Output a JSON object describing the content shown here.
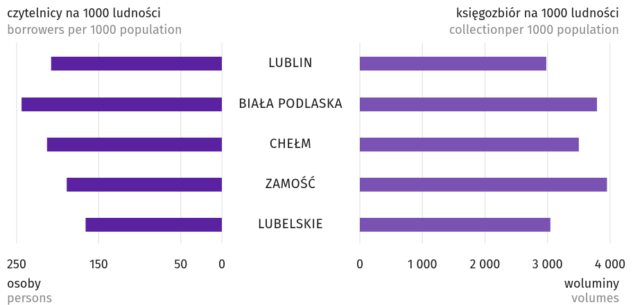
{
  "chart_data": [
    {
      "type": "bar",
      "orientation": "horizontal",
      "title": "czytelnicy na 1000 ludności",
      "subtitle": "borrowers per 1000 population",
      "xlabel": "osoby",
      "xlabel_subtitle": "persons",
      "categories": [
        "LUBLIN",
        "BIAŁA PODLASKA",
        "CHEŁM",
        "ZAMOŚĆ",
        "LUBELSKIE"
      ],
      "values": [
        208,
        244,
        213,
        189,
        166
      ],
      "color": "#5a22a0",
      "xlim": [
        250,
        0
      ],
      "xticks": [
        250,
        150,
        50,
        0
      ],
      "grid": true
    },
    {
      "type": "bar",
      "orientation": "horizontal",
      "title": "księgozbiór na 1000 ludności",
      "subtitle": "collectionper 1000 population",
      "xlabel": "woluminy",
      "xlabel_subtitle": "volumes",
      "values": [
        2980,
        3790,
        3500,
        3950,
        3045
      ],
      "color": "#7a52b3",
      "xlim": [
        0,
        4000
      ],
      "xticks": [
        0,
        {
          "value": 1000,
          "label": "1 000"
        },
        {
          "value": 2000,
          "label": "2 000"
        },
        {
          "value": 3000,
          "label": "3 000"
        },
        {
          "value": 4000,
          "label": "4 000"
        }
      ],
      "grid": true
    }
  ]
}
